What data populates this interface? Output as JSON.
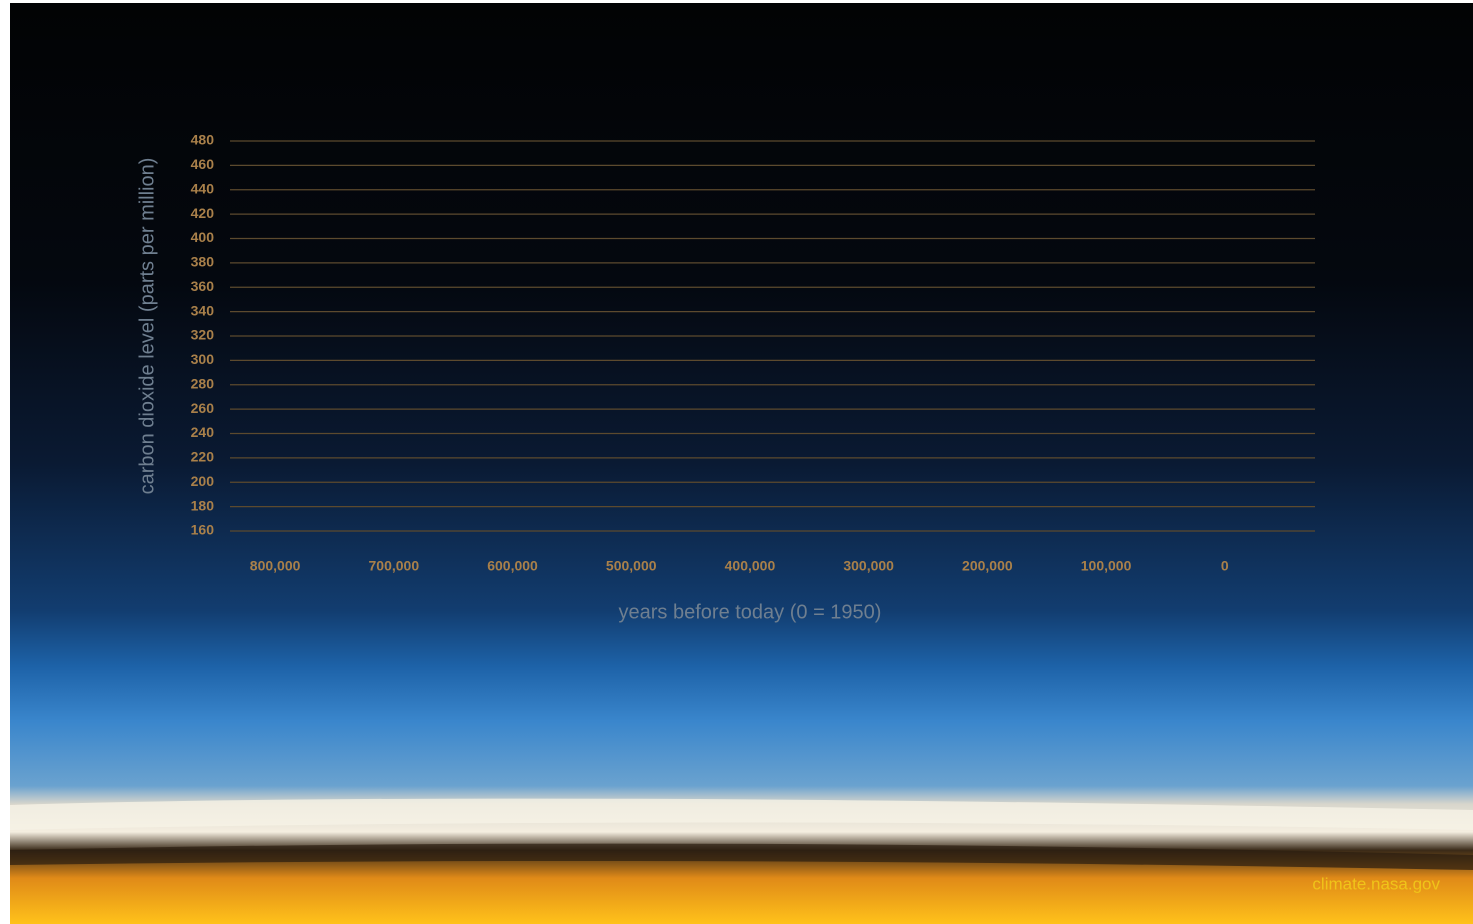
{
  "chart_data": {
    "type": "line",
    "ylabel": "carbon dioxide level (parts per million)",
    "xlabel": "years before today (0 = 1950)",
    "ylim": [
      160,
      480
    ],
    "yticks": [
      160,
      180,
      200,
      220,
      240,
      260,
      280,
      300,
      320,
      340,
      360,
      380,
      400,
      420,
      440,
      460,
      480
    ],
    "xlim": [
      838000,
      -76000
    ],
    "xticks": [
      {
        "value": 800000,
        "label": "800,000"
      },
      {
        "value": 700000,
        "label": "700,000"
      },
      {
        "value": 600000,
        "label": "600,000"
      },
      {
        "value": 500000,
        "label": "500,000"
      },
      {
        "value": 400000,
        "label": "400,000"
      },
      {
        "value": 300000,
        "label": "300,000"
      },
      {
        "value": 200000,
        "label": "200,000"
      },
      {
        "value": 100000,
        "label": "100,000"
      },
      0
    ],
    "grid": true,
    "series": [],
    "source": "climate.nasa.gov"
  }
}
